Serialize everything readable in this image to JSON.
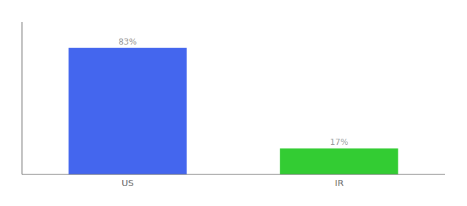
{
  "chart_data": {
    "type": "bar",
    "categories": [
      "US",
      "IR"
    ],
    "values": [
      83,
      17
    ],
    "value_labels": [
      "83%",
      "17%"
    ],
    "colors": [
      "#4466ee",
      "#33cc33"
    ],
    "ylim": [
      0,
      100
    ],
    "data_labels": true,
    "tick_labels": "x",
    "grid": false
  }
}
